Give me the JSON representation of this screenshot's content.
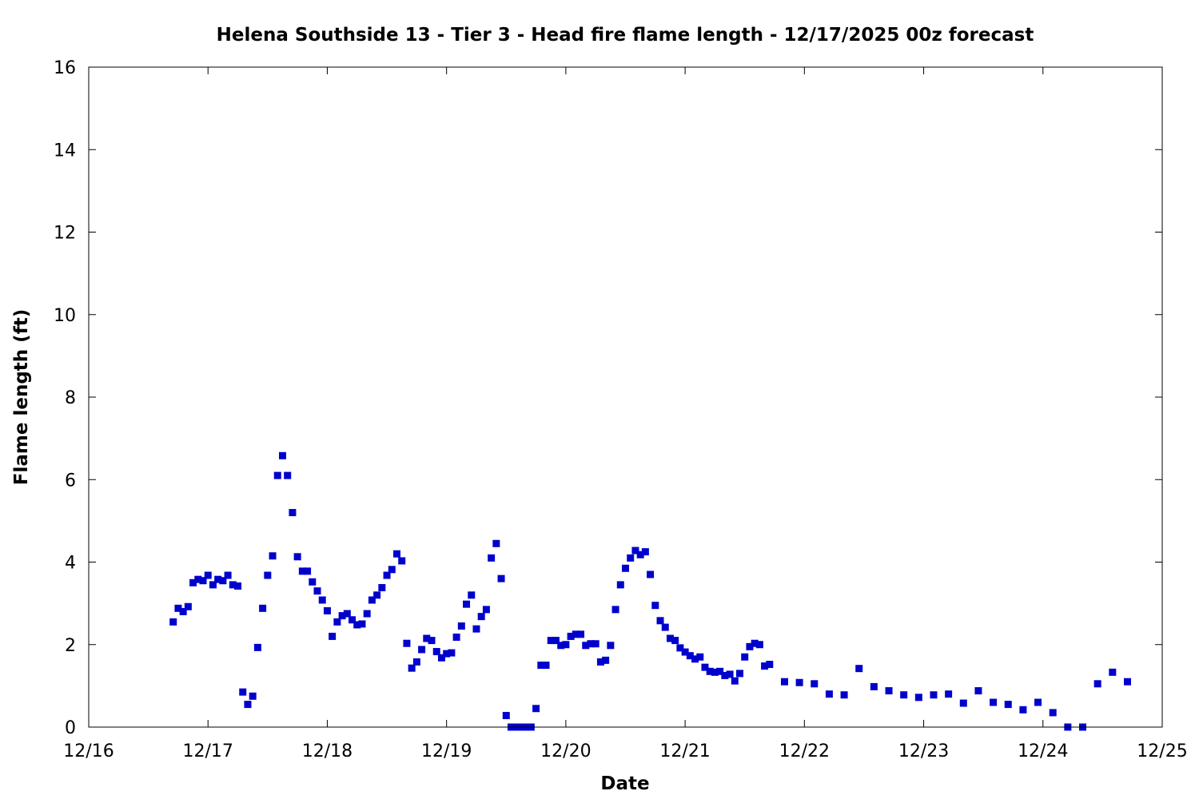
{
  "chart_data": {
    "type": "scatter",
    "title": "Helena Southside 13 - Tier 3 - Head fire flame length - 12/17/2025 00z forecast",
    "xlabel": "Date",
    "ylabel": "Flame length (ft)",
    "xlim": [
      "12/16",
      "12/25"
    ],
    "ylim": [
      0,
      16
    ],
    "x_ticks": [
      "12/16",
      "12/17",
      "12/18",
      "12/19",
      "12/20",
      "12/21",
      "12/22",
      "12/23",
      "12/24",
      "12/25"
    ],
    "y_ticks": [
      "0",
      "2",
      "4",
      "6",
      "8",
      "10",
      "12",
      "14",
      "16"
    ],
    "grid": false,
    "legend": "none",
    "marker_color": "#0000cc",
    "series": [
      {
        "x": [
          "12/16 17:00",
          "12/16 18:00",
          "12/16 19:00",
          "12/16 20:00",
          "12/16 21:00",
          "12/16 22:00",
          "12/16 23:00",
          "12/17 00:00",
          "12/17 01:00",
          "12/17 02:00",
          "12/17 03:00",
          "12/17 04:00",
          "12/17 05:00",
          "12/17 06:00",
          "12/17 07:00",
          "12/17 08:00",
          "12/17 09:00",
          "12/17 10:00",
          "12/17 11:00",
          "12/17 12:00",
          "12/17 13:00",
          "12/17 14:00",
          "12/17 15:00",
          "12/17 16:00",
          "12/17 17:00",
          "12/17 18:00",
          "12/17 19:00",
          "12/17 20:00",
          "12/17 21:00",
          "12/17 22:00",
          "12/17 23:00",
          "12/18 00:00",
          "12/18 01:00",
          "12/18 02:00",
          "12/18 03:00",
          "12/18 04:00",
          "12/18 05:00",
          "12/18 06:00",
          "12/18 07:00",
          "12/18 08:00",
          "12/18 09:00",
          "12/18 10:00",
          "12/18 11:00",
          "12/18 12:00",
          "12/18 13:00",
          "12/18 14:00",
          "12/18 15:00",
          "12/18 16:00",
          "12/18 17:00",
          "12/18 18:00",
          "12/18 19:00",
          "12/18 20:00",
          "12/18 21:00",
          "12/18 22:00",
          "12/18 23:00",
          "12/19 00:00",
          "12/19 01:00",
          "12/19 02:00",
          "12/19 03:00",
          "12/19 04:00",
          "12/19 05:00",
          "12/19 06:00",
          "12/19 07:00",
          "12/19 08:00",
          "12/19 09:00",
          "12/19 10:00",
          "12/19 11:00",
          "12/19 12:00",
          "12/19 13:00",
          "12/19 14:00",
          "12/19 15:00",
          "12/19 16:00",
          "12/19 17:00",
          "12/19 18:00",
          "12/19 19:00",
          "12/19 20:00",
          "12/19 21:00",
          "12/19 22:00",
          "12/19 23:00",
          "12/20 00:00",
          "12/20 01:00",
          "12/20 02:00",
          "12/20 03:00",
          "12/20 04:00",
          "12/20 05:00",
          "12/20 06:00",
          "12/20 07:00",
          "12/20 08:00",
          "12/20 09:00",
          "12/20 10:00",
          "12/20 11:00",
          "12/20 12:00",
          "12/20 13:00",
          "12/20 14:00",
          "12/20 15:00",
          "12/20 16:00",
          "12/20 17:00",
          "12/20 18:00",
          "12/20 19:00",
          "12/20 20:00",
          "12/20 21:00",
          "12/20 22:00",
          "12/20 23:00",
          "12/21 00:00",
          "12/21 01:00",
          "12/21 02:00",
          "12/21 03:00",
          "12/21 04:00",
          "12/21 05:00",
          "12/21 06:00",
          "12/21 07:00",
          "12/21 08:00",
          "12/21 09:00",
          "12/21 10:00",
          "12/21 11:00",
          "12/21 12:00",
          "12/21 13:00",
          "12/21 14:00",
          "12/21 15:00",
          "12/21 16:00",
          "12/21 17:00",
          "12/21 20:00",
          "12/21 23:00",
          "12/22 02:00",
          "12/22 05:00",
          "12/22 08:00",
          "12/22 11:00",
          "12/22 14:00",
          "12/22 17:00",
          "12/22 20:00",
          "12/22 23:00",
          "12/23 02:00",
          "12/23 05:00",
          "12/23 08:00",
          "12/23 11:00",
          "12/23 14:00",
          "12/23 17:00",
          "12/23 20:00",
          "12/23 23:00",
          "12/24 02:00",
          "12/24 05:00",
          "12/24 08:00",
          "12/24 11:00",
          "12/24 14:00",
          "12/24 17:00"
        ],
        "y": [
          2.55,
          2.88,
          2.8,
          2.92,
          3.5,
          3.58,
          3.55,
          3.68,
          3.45,
          3.58,
          3.55,
          3.68,
          3.45,
          3.42,
          0.85,
          0.55,
          0.75,
          1.93,
          2.88,
          3.68,
          4.15,
          6.1,
          6.58,
          6.1,
          5.2,
          4.13,
          3.78,
          3.78,
          3.52,
          3.3,
          3.08,
          2.82,
          2.2,
          2.55,
          2.7,
          2.75,
          2.6,
          2.48,
          2.5,
          2.75,
          3.08,
          3.2,
          3.38,
          3.68,
          3.82,
          4.2,
          4.03,
          2.03,
          1.43,
          1.58,
          1.88,
          2.15,
          2.1,
          1.83,
          1.68,
          1.78,
          1.8,
          2.18,
          2.45,
          2.98,
          3.2,
          2.38,
          2.68,
          2.85,
          4.1,
          4.45,
          3.6,
          0.28,
          0.0,
          0.0,
          0.0,
          0.0,
          0.0,
          0.45,
          1.5,
          1.5,
          2.1,
          2.1,
          1.98,
          2.0,
          2.2,
          2.25,
          2.25,
          1.98,
          2.02,
          2.02,
          1.58,
          1.62,
          1.98,
          2.85,
          3.45,
          3.85,
          4.1,
          4.28,
          4.18,
          4.25,
          3.7,
          2.95,
          2.58,
          2.42,
          2.15,
          2.1,
          1.92,
          1.82,
          1.73,
          1.65,
          1.7,
          1.45,
          1.35,
          1.33,
          1.35,
          1.25,
          1.28,
          1.12,
          1.3,
          1.7,
          1.95,
          2.03,
          2.0,
          1.48,
          1.52,
          1.1,
          1.08,
          1.05,
          0.8,
          0.78,
          1.42,
          0.98,
          0.88,
          0.78,
          0.72,
          0.78,
          0.8,
          0.58,
          0.88,
          0.6,
          0.55,
          0.42,
          0.6,
          0.35,
          0.0,
          0.0,
          1.05,
          1.33,
          1.1
        ]
      }
    ]
  }
}
